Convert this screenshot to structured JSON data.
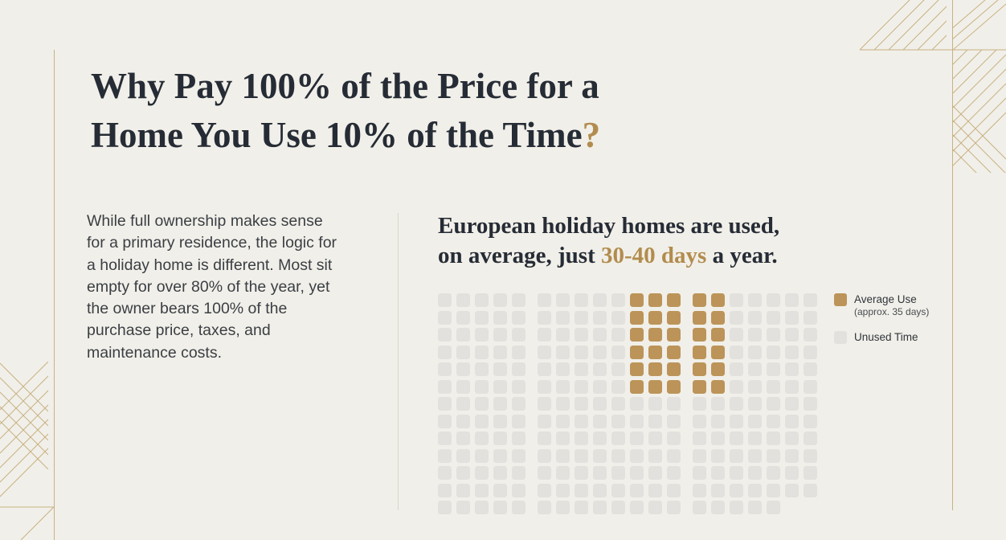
{
  "colors": {
    "background": "#f1efe9",
    "ink": "#262c35",
    "body_text": "#3a3f44",
    "accent_text": "#b28c4e",
    "used_square": "#bc9459",
    "unused_square": "#e3e1dd",
    "deco_line": "#c8b284",
    "divider": "#d9d5cb"
  },
  "title": {
    "line1": "Why Pay 100% of the Price for a",
    "line2": "Home You Use 10% of the Time",
    "line2_accent": "?"
  },
  "intro": {
    "text": "While full ownership makes sense for a primary residence, the logic for a holiday home is different. Most sit empty for over 80% of the year, yet the owner bears 100% of the purchase price, taxes, and maintenance costs."
  },
  "headline": {
    "line1": "European holiday homes are used,",
    "line2_pre": "on average, just ",
    "line2_accent": "30-40 days",
    "line2_post": " a year."
  },
  "chart_data": {
    "type": "waffle",
    "title": "European holiday homes are used, on average, just 30-40 days a year.",
    "series": [
      {
        "name": "Average Use (approx. 35 days)",
        "squares": 30,
        "color": "#bc9459"
      },
      {
        "name": "Unused Time",
        "squares": 228,
        "color": "#e3e1dd"
      }
    ],
    "grid": {
      "rows": 13,
      "columns": 20,
      "column_groups": [
        5,
        8,
        7
      ],
      "new_group_start_columns": [
        6,
        14
      ],
      "used_columns": [
        11,
        12,
        13,
        14,
        15
      ],
      "used_rows": 6,
      "last_row_cells": 18
    },
    "legend": [
      {
        "label": "Average Use",
        "sublabel": "(approx. 35 days)",
        "swatch": "used"
      },
      {
        "label": "Unused Time",
        "sublabel": "",
        "swatch": "unused"
      }
    ],
    "legend_position": "right"
  }
}
